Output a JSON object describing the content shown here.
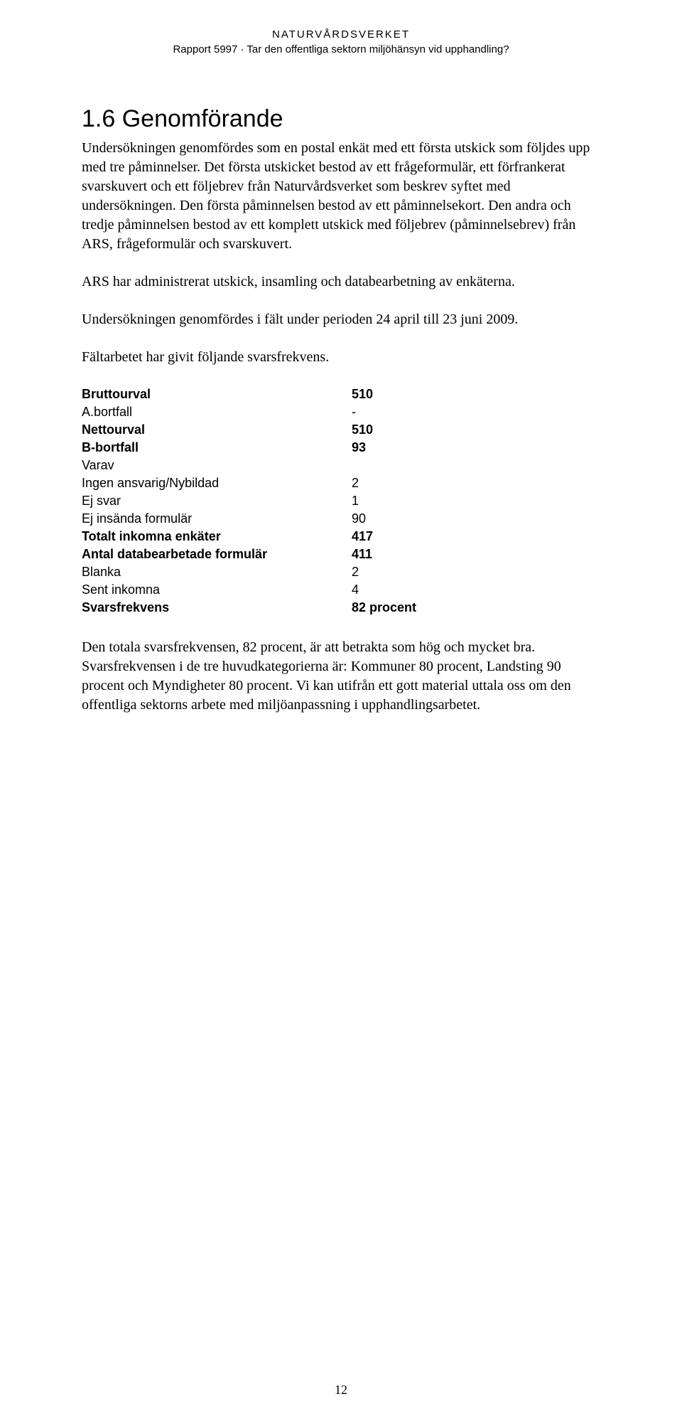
{
  "header": {
    "org": "NATURVÅRDSVERKET",
    "report_line": "Rapport 5997 · Tar den offentliga sektorn miljöhänsyn vid upphandling?"
  },
  "section": {
    "title": "1.6 Genomförande"
  },
  "paragraphs": {
    "p1": "Undersökningen genomfördes som en postal enkät med ett första utskick som följdes upp med tre påminnelser. Det första utskicket bestod av ett frågeformulär, ett förfrankerat svarskuvert och ett följebrev från Naturvårdsverket som beskrev syftet med undersökningen. Den första påminnelsen bestod av ett påminnelsekort. Den andra och tredje påminnelsen bestod av ett komplett utskick med följebrev (påminnelsebrev) från ARS, frågeformulär och svarskuvert.",
    "p2": "ARS har administrerat utskick, insamling och databearbetning av enkäterna.",
    "p3": "Undersökningen genomfördes i fält under perioden 24 april till 23 juni 2009.",
    "p4": "Fältarbetet har givit följande svarsfrekvens.",
    "p5": "Den totala svarsfrekvensen, 82 procent, är att betrakta som hög och mycket bra. Svarsfrekvensen i de tre huvudkategorierna är: Kommuner 80 procent, Landsting 90 procent och Myndigheter 80 procent. Vi kan utifrån ett gott material uttala oss om den offentliga sektorns arbete med miljöanpassning i upphandlingsarbetet."
  },
  "stats": {
    "rows": [
      {
        "label": "Bruttourval",
        "value": "510",
        "bold": true
      },
      {
        "label": "A.bortfall",
        "value": "-",
        "bold": false
      },
      {
        "label": "Nettourval",
        "value": "510",
        "bold": true
      },
      {
        "label": "B-bortfall",
        "value": "93",
        "bold": true
      },
      {
        "label": "Varav",
        "value": "",
        "bold": false
      },
      {
        "label": "Ingen ansvarig/Nybildad",
        "value": "2",
        "bold": false
      },
      {
        "label": "Ej svar",
        "value": "1",
        "bold": false
      },
      {
        "label": "Ej insända formulär",
        "value": "90",
        "bold": false
      },
      {
        "label": "Totalt inkomna enkäter",
        "value": "417",
        "bold": true
      },
      {
        "label": "Antal databearbetade formulär",
        "value": "411",
        "bold": true
      },
      {
        "label": "Blanka",
        "value": "2",
        "bold": false
      },
      {
        "label": "Sent inkomna",
        "value": "4",
        "bold": false
      },
      {
        "label": "Svarsfrekvens",
        "value": "82 procent",
        "bold": true
      }
    ]
  },
  "page_number": "12"
}
